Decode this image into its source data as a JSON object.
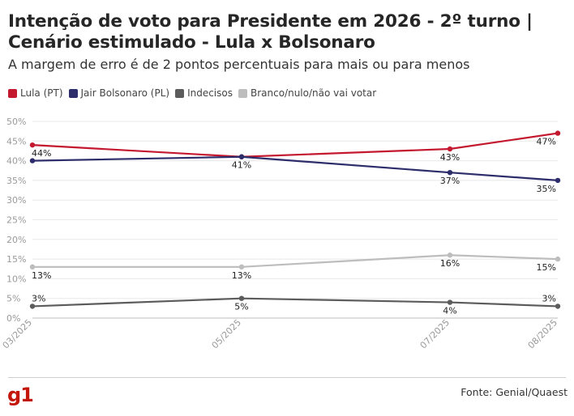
{
  "title": "Intenção de voto para Presidente em 2026 - 2º turno | Cenário estimulado - Lula x Bolsonaro",
  "subtitle": "A margem de erro é de 2 pontos percentuais para mais ou para menos",
  "source": "Fonte: Genial/Quaest",
  "logo": "g1",
  "chart_data": {
    "type": "line",
    "categories": [
      "03/2025",
      "05/2025",
      "07/2025",
      "08/2025"
    ],
    "x": [
      "2025-03",
      "2025-05",
      "2025-07",
      "2025-08"
    ],
    "ylim": [
      0,
      50
    ],
    "yticks": [
      "0%",
      "5%",
      "10%",
      "15%",
      "20%",
      "25%",
      "30%",
      "35%",
      "40%",
      "45%",
      "50%"
    ],
    "grid": true,
    "legend_position": "top-left",
    "series": [
      {
        "name": "Lula (PT)",
        "color": "#c4182f",
        "values": [
          44,
          41,
          43,
          47
        ],
        "labels": [
          "44%",
          "",
          "43%",
          "47%"
        ]
      },
      {
        "name": "Jair Bolsonaro (PL)",
        "color": "#2d2d6b",
        "values": [
          40,
          41,
          37,
          35
        ],
        "labels": [
          "",
          "41%",
          "37%",
          "35%"
        ]
      },
      {
        "name": "Indecisos",
        "color": "#5c5c5c",
        "values": [
          3,
          5,
          4,
          3
        ],
        "labels": [
          "3%",
          "5%",
          "4%",
          "3%"
        ]
      },
      {
        "name": "Branco/nulo/não vai votar",
        "color": "#bdbdbd",
        "values": [
          13,
          13,
          16,
          15
        ],
        "labels": [
          "13%",
          "13%",
          "16%",
          "15%"
        ]
      }
    ]
  }
}
